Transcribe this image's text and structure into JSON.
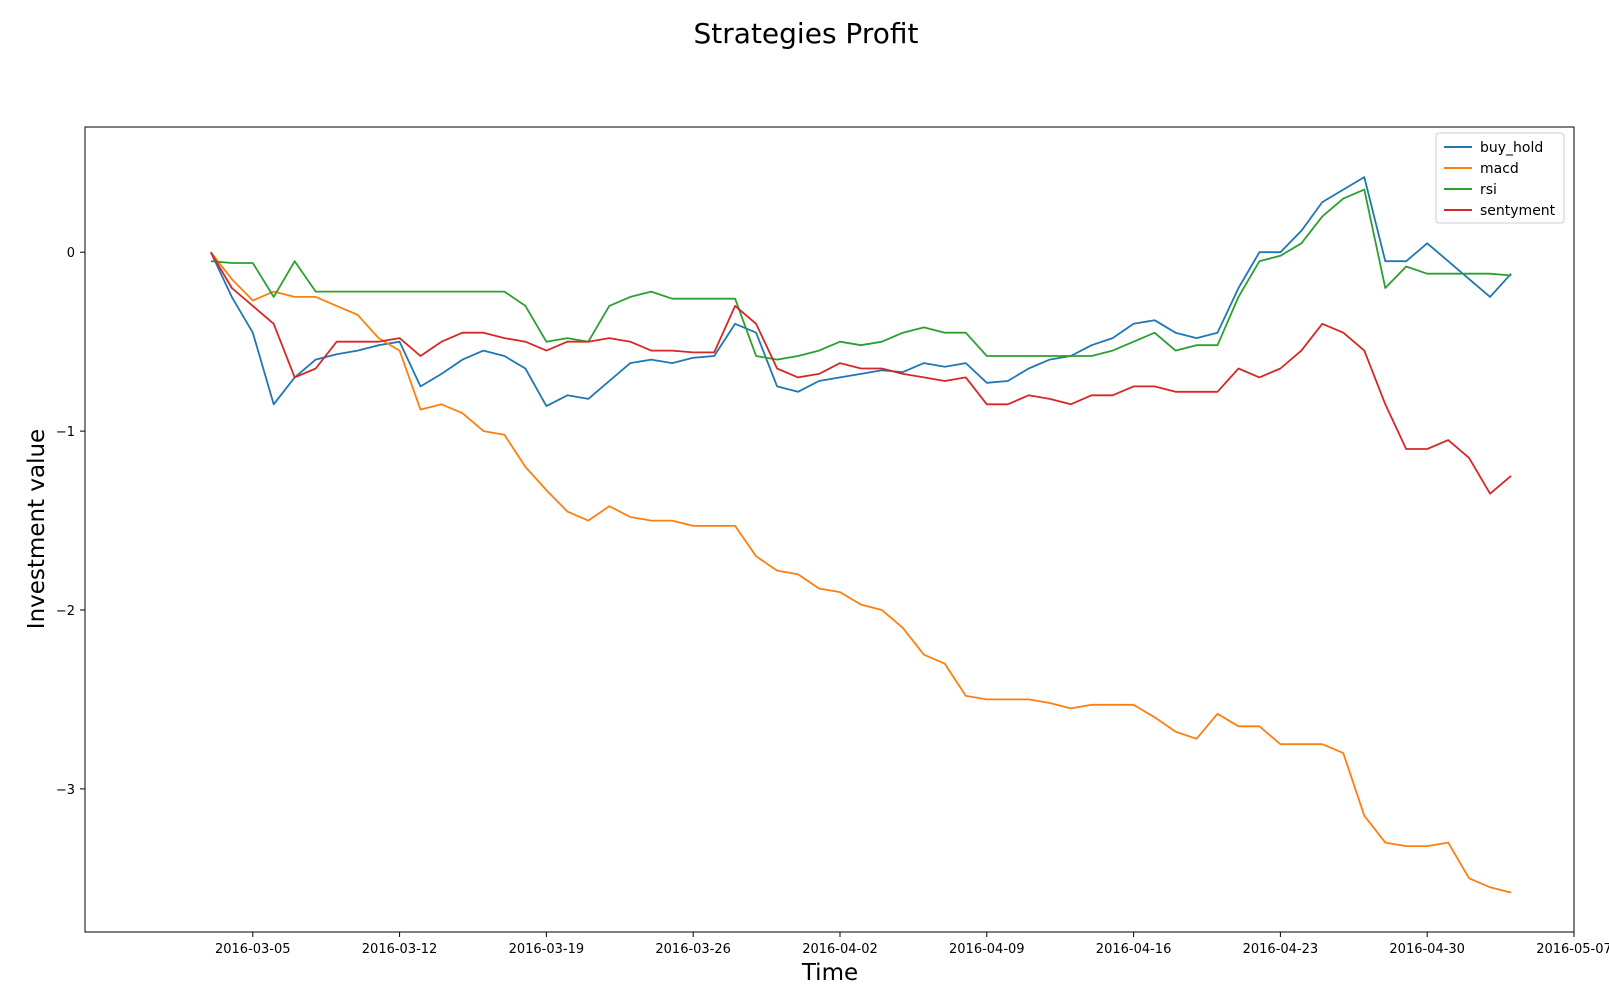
{
  "chart_data": {
    "type": "line",
    "title": "Strategies Profit",
    "xlabel": "Time",
    "ylabel": "Investment value",
    "xlim": [
      "2016-02-26",
      "2016-05-07"
    ],
    "ylim": [
      -3.8,
      0.7
    ],
    "x_ticks": [
      "2016-03-05",
      "2016-03-12",
      "2016-03-19",
      "2016-03-26",
      "2016-04-02",
      "2016-04-09",
      "2016-04-16",
      "2016-04-23",
      "2016-04-30",
      "2016-05-07"
    ],
    "y_ticks": [
      0,
      -1,
      -2,
      -3
    ],
    "y_tick_labels": [
      "0",
      "−1",
      "−2",
      "−3"
    ],
    "grid": false,
    "legend_position": "upper-right",
    "x": [
      "2016-03-03",
      "2016-03-04",
      "2016-03-05",
      "2016-03-06",
      "2016-03-07",
      "2016-03-08",
      "2016-03-09",
      "2016-03-10",
      "2016-03-11",
      "2016-03-12",
      "2016-03-13",
      "2016-03-14",
      "2016-03-15",
      "2016-03-16",
      "2016-03-17",
      "2016-03-18",
      "2016-03-19",
      "2016-03-20",
      "2016-03-21",
      "2016-03-22",
      "2016-03-23",
      "2016-03-24",
      "2016-03-25",
      "2016-03-26",
      "2016-03-27",
      "2016-03-28",
      "2016-03-29",
      "2016-03-30",
      "2016-03-31",
      "2016-04-01",
      "2016-04-02",
      "2016-04-03",
      "2016-04-04",
      "2016-04-05",
      "2016-04-06",
      "2016-04-07",
      "2016-04-08",
      "2016-04-09",
      "2016-04-10",
      "2016-04-11",
      "2016-04-12",
      "2016-04-13",
      "2016-04-14",
      "2016-04-15",
      "2016-04-16",
      "2016-04-17",
      "2016-04-18",
      "2016-04-19",
      "2016-04-20",
      "2016-04-21",
      "2016-04-22",
      "2016-04-23",
      "2016-04-24",
      "2016-04-25",
      "2016-04-26",
      "2016-04-27",
      "2016-04-28",
      "2016-04-29",
      "2016-04-30",
      "2016-05-01",
      "2016-05-02",
      "2016-05-03",
      "2016-05-04"
    ],
    "series": [
      {
        "name": "buy_hold",
        "color": "#1f77b4",
        "values": [
          0.0,
          -0.25,
          -0.45,
          -0.85,
          -0.7,
          -0.6,
          -0.57,
          -0.55,
          -0.52,
          -0.5,
          -0.75,
          -0.68,
          -0.6,
          -0.55,
          -0.58,
          -0.65,
          -0.86,
          -0.8,
          -0.82,
          -0.72,
          -0.62,
          -0.6,
          -0.62,
          -0.59,
          -0.58,
          -0.4,
          -0.45,
          -0.75,
          -0.78,
          -0.72,
          -0.7,
          -0.68,
          -0.66,
          -0.67,
          -0.62,
          -0.64,
          -0.62,
          -0.73,
          -0.72,
          -0.65,
          -0.6,
          -0.58,
          -0.52,
          -0.48,
          -0.4,
          -0.38,
          -0.45,
          -0.48,
          -0.45,
          -0.2,
          0.0,
          0.0,
          0.12,
          0.28,
          0.35,
          0.42,
          -0.05,
          -0.05,
          0.05,
          -0.05,
          -0.15,
          -0.25,
          -0.12
        ]
      },
      {
        "name": "macd",
        "color": "#ff7f0e",
        "values": [
          0.0,
          -0.15,
          -0.27,
          -0.22,
          -0.25,
          -0.25,
          -0.3,
          -0.35,
          -0.48,
          -0.55,
          -0.88,
          -0.85,
          -0.9,
          -1.0,
          -1.02,
          -1.2,
          -1.33,
          -1.45,
          -1.5,
          -1.42,
          -1.48,
          -1.5,
          -1.5,
          -1.53,
          -1.53,
          -1.53,
          -1.7,
          -1.78,
          -1.8,
          -1.88,
          -1.9,
          -1.97,
          -2.0,
          -2.1,
          -2.25,
          -2.3,
          -2.48,
          -2.5,
          -2.5,
          -2.5,
          -2.52,
          -2.55,
          -2.53,
          -2.53,
          -2.53,
          -2.6,
          -2.68,
          -2.72,
          -2.58,
          -2.65,
          -2.65,
          -2.75,
          -2.75,
          -2.75,
          -2.8,
          -3.15,
          -3.3,
          -3.32,
          -3.32,
          -3.3,
          -3.5,
          -3.55,
          -3.58
        ]
      },
      {
        "name": "rsi",
        "color": "#2ca02c",
        "values": [
          -0.05,
          -0.06,
          -0.06,
          -0.25,
          -0.05,
          -0.22,
          -0.22,
          -0.22,
          -0.22,
          -0.22,
          -0.22,
          -0.22,
          -0.22,
          -0.22,
          -0.22,
          -0.3,
          -0.5,
          -0.48,
          -0.5,
          -0.3,
          -0.25,
          -0.22,
          -0.26,
          -0.26,
          -0.26,
          -0.26,
          -0.58,
          -0.6,
          -0.58,
          -0.55,
          -0.5,
          -0.52,
          -0.5,
          -0.45,
          -0.42,
          -0.45,
          -0.45,
          -0.58,
          -0.58,
          -0.58,
          -0.58,
          -0.58,
          -0.58,
          -0.55,
          -0.5,
          -0.45,
          -0.55,
          -0.52,
          -0.52,
          -0.25,
          -0.05,
          -0.02,
          0.05,
          0.2,
          0.3,
          0.35,
          -0.2,
          -0.08,
          -0.12,
          -0.12,
          -0.12,
          -0.12,
          -0.13
        ]
      },
      {
        "name": "sentyment",
        "color": "#d62728",
        "values": [
          0.0,
          -0.2,
          -0.3,
          -0.4,
          -0.7,
          -0.65,
          -0.5,
          -0.5,
          -0.5,
          -0.48,
          -0.58,
          -0.5,
          -0.45,
          -0.45,
          -0.48,
          -0.5,
          -0.55,
          -0.5,
          -0.5,
          -0.48,
          -0.5,
          -0.55,
          -0.55,
          -0.56,
          -0.56,
          -0.3,
          -0.4,
          -0.65,
          -0.7,
          -0.68,
          -0.62,
          -0.65,
          -0.65,
          -0.68,
          -0.7,
          -0.72,
          -0.7,
          -0.85,
          -0.85,
          -0.8,
          -0.82,
          -0.85,
          -0.8,
          -0.8,
          -0.75,
          -0.75,
          -0.78,
          -0.78,
          -0.78,
          -0.65,
          -0.7,
          -0.65,
          -0.55,
          -0.4,
          -0.45,
          -0.55,
          -0.85,
          -1.1,
          -1.1,
          -1.05,
          -1.15,
          -1.35,
          -1.25
        ]
      }
    ]
  }
}
